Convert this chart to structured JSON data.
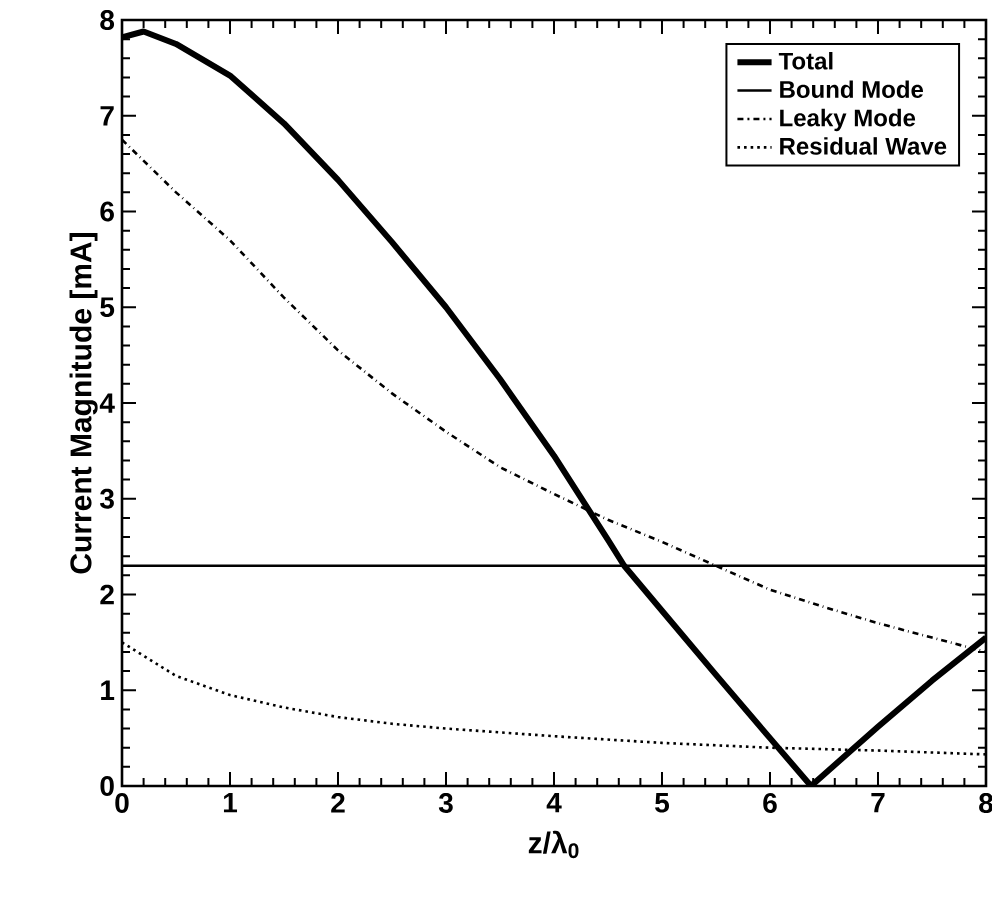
{
  "chart_data": {
    "type": "line",
    "xlabel": "z/λ$_{0}$",
    "ylabel": "Current Magnitude [mA]",
    "xlim": [
      0,
      8
    ],
    "ylim": [
      0,
      8
    ],
    "xticks": [
      0,
      1,
      2,
      3,
      4,
      5,
      6,
      7,
      8
    ],
    "yticks": [
      0,
      1,
      2,
      3,
      4,
      5,
      6,
      7,
      8
    ],
    "legend": "top right",
    "grid": false,
    "marker": "none",
    "series": [
      {
        "name": "Total",
        "color": "#000000",
        "line_style": "solid",
        "x": [
          0,
          0.2,
          0.5,
          1,
          1.5,
          2,
          2.5,
          3,
          3.5,
          4,
          4.5,
          4.65,
          5,
          5.5,
          6,
          6.38,
          7,
          7.5,
          8
        ],
        "values": [
          7.82,
          7.88,
          7.75,
          7.42,
          6.92,
          6.33,
          5.68,
          5.0,
          4.25,
          3.45,
          2.57,
          2.3,
          1.83,
          1.16,
          0.5,
          0.0,
          0.62,
          1.1,
          1.55
        ]
      },
      {
        "name": "Bound Mode",
        "color": "#000000",
        "line_style": "solid",
        "x": [
          0,
          8
        ],
        "values": [
          2.3,
          2.3
        ]
      },
      {
        "name": "Leaky Mode",
        "color": "#000000",
        "line_style": "dashdot",
        "x": [
          0,
          0.5,
          1,
          1.5,
          2,
          2.5,
          3,
          3.5,
          4,
          4.5,
          5,
          5.5,
          6,
          6.5,
          7,
          7.5,
          8
        ],
        "values": [
          6.75,
          6.2,
          5.7,
          5.1,
          4.55,
          4.1,
          3.7,
          3.33,
          3.05,
          2.78,
          2.55,
          2.3,
          2.05,
          1.87,
          1.7,
          1.55,
          1.4
        ]
      },
      {
        "name": "Residual Wave",
        "color": "#000000",
        "line_style": "dotted",
        "x": [
          0,
          0.5,
          1,
          1.5,
          2,
          2.5,
          3,
          3.5,
          4,
          5,
          6,
          7,
          8
        ],
        "values": [
          1.5,
          1.15,
          0.95,
          0.82,
          0.72,
          0.65,
          0.6,
          0.56,
          0.52,
          0.45,
          0.4,
          0.37,
          0.33
        ]
      }
    ]
  }
}
